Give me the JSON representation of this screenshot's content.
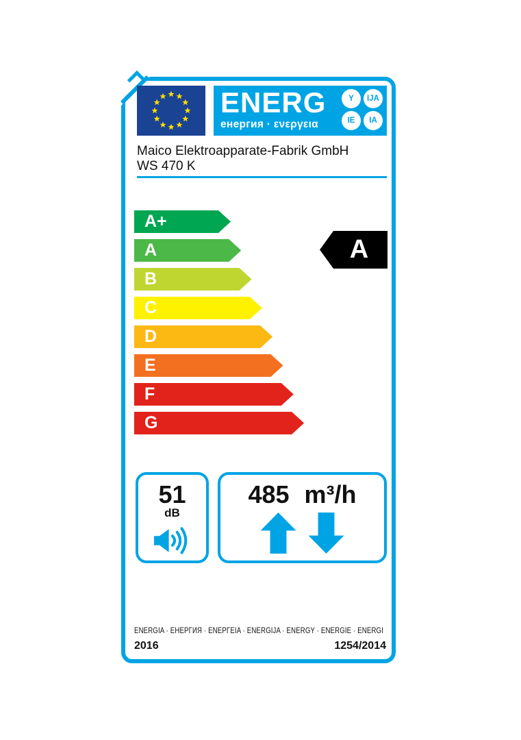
{
  "label": {
    "logo": {
      "main": "ENERG",
      "sub": "енергия · ενεργεια",
      "circles": [
        "Y",
        "IJA",
        "IE",
        "IA"
      ]
    },
    "supplier": "Maico Elektroapparate-Fabrik GmbH",
    "model": "WS 470 K",
    "scale": [
      {
        "class": "A+",
        "color": "#00A651"
      },
      {
        "class": "A",
        "color": "#4CB847"
      },
      {
        "class": "B",
        "color": "#BFD630"
      },
      {
        "class": "C",
        "color": "#FFF200"
      },
      {
        "class": "D",
        "color": "#FDB913"
      },
      {
        "class": "E",
        "color": "#F37021"
      },
      {
        "class": "F",
        "color": "#E2231B"
      },
      {
        "class": "G",
        "color": "#E2231B"
      }
    ],
    "rating": "A",
    "noise": {
      "value": "51",
      "unit": "dB"
    },
    "airflow": {
      "value": "485",
      "unit": "m³/h"
    },
    "footer": {
      "languages": "ENERGIA · ЕНЕРГИЯ · ΕΝΕΡΓΕΙΑ · ENERGIJA · ENERGY · ENERGIE · ENERGI",
      "year": "2016",
      "regulation": "1254/2014"
    },
    "icons": {
      "flag": "eu-flag",
      "noise": "speaker",
      "airflow_up": "arrow-up",
      "airflow_down": "arrow-down"
    },
    "colors": {
      "accent": "#00A4E4",
      "flag_blue": "#1A4394",
      "star_yellow": "#FFDD00",
      "indicator": "#000000"
    }
  }
}
